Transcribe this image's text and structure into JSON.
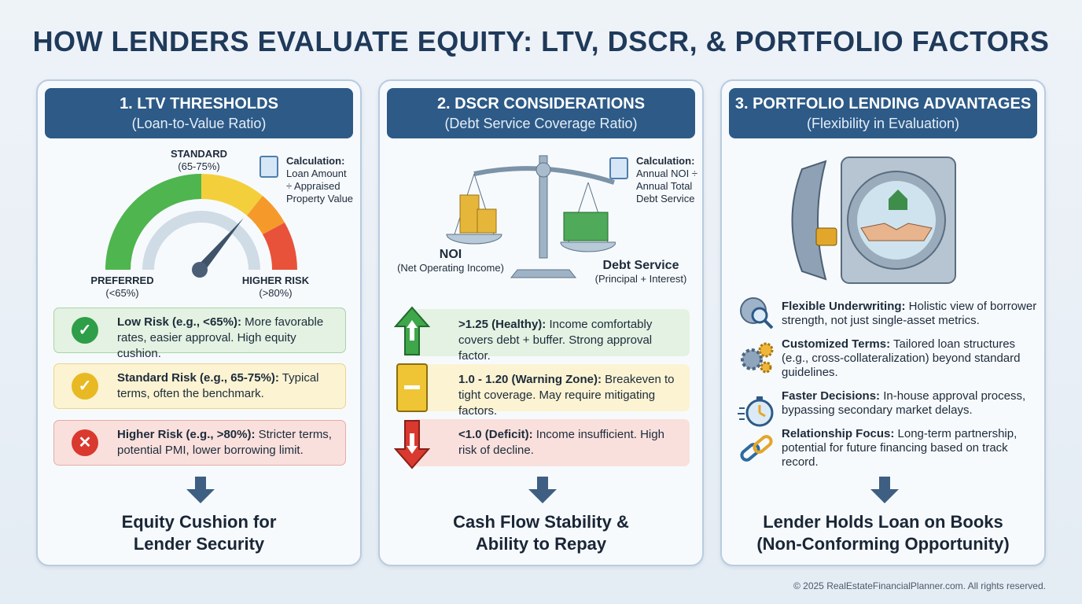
{
  "title": "HOW LENDERS EVALUATE EQUITY: LTV, DSCR, & PORTFOLIO FACTORS",
  "panels": [
    {
      "title": "1. LTV THRESHOLDS",
      "subtitle": "(Loan-to-Value Ratio)",
      "gauge": {
        "standard_label": "STANDARD",
        "standard_range": "(65-75%)",
        "preferred_label": "PREFERRED",
        "preferred_range": "(<65%)",
        "higher_label": "HIGHER RISK",
        "higher_range": "(>80%)"
      },
      "calc_title": "Calculation:",
      "calc_lines": [
        "Loan Amount",
        "÷ Appraised",
        "Property Value"
      ],
      "risks": [
        {
          "bold": "Low Risk (e.g., <65%):",
          "text": " More favorable rates, easier approval. High equity cushion.",
          "icon": "check-icon",
          "color": "#2e9e48"
        },
        {
          "bold": "Standard Risk (e.g., 65-75%):",
          "text": " Typical terms, often the benchmark.",
          "icon": "check-icon",
          "color": "#e8b923"
        },
        {
          "bold": "Higher Risk (e.g., >80%):",
          "text": " Stricter terms, potential PMI, lower borrowing limit.",
          "icon": "x-warning-icon",
          "color": "#d9392f"
        }
      ],
      "conclusion": [
        "Equity Cushion for",
        "Lender Security"
      ]
    },
    {
      "title": "2. DSCR CONSIDERATIONS",
      "subtitle": "(Debt Service Coverage Ratio)",
      "calc_title": "Calculation:",
      "calc_lines": [
        "Annual NOI ÷",
        "Annual Total",
        "Debt Service"
      ],
      "noi_label": "NOI",
      "noi_sub": "(Net Operating Income)",
      "debt_label": "Debt Service",
      "debt_sub": "(Principal + Interest)",
      "levels": [
        {
          "bold": ">1.25 (Healthy):",
          "text": " Income comfortably covers debt + buffer. Strong approval factor."
        },
        {
          "bold": "1.0 - 1.20 (Warning Zone):",
          "text": " Breakeven to tight coverage. May require mitigating factors."
        },
        {
          "bold": "<1.0 (Deficit):",
          "text": " Income insufficient. High risk of decline."
        }
      ],
      "conclusion": [
        "Cash Flow Stability &",
        "Ability to Repay"
      ]
    },
    {
      "title": "3. PORTFOLIO LENDING ADVANTAGES",
      "subtitle": "(Flexibility in Evaluation)",
      "items": [
        {
          "bold": "Flexible Underwriting:",
          "text": " Holistic view of borrower strength, not just single-asset metrics.",
          "icon": "brain-magnifier-icon"
        },
        {
          "bold": "Customized Terms:",
          "text": " Tailored loan structures (e.g., cross-collateralization) beyond standard guidelines.",
          "icon": "gears-icon"
        },
        {
          "bold": "Faster Decisions:",
          "text": " In-house approval process, bypassing secondary market delays.",
          "icon": "stopwatch-icon"
        },
        {
          "bold": "Relationship Focus:",
          "text": " Long-term partnership, potential for future financing based on track record.",
          "icon": "chain-link-icon"
        }
      ],
      "conclusion": [
        "Lender Holds Loan on Books",
        "(Non-Conforming Opportunity)"
      ]
    }
  ],
  "footer": "© 2025 RealEstateFinancialPlanner.com. All rights reserved."
}
